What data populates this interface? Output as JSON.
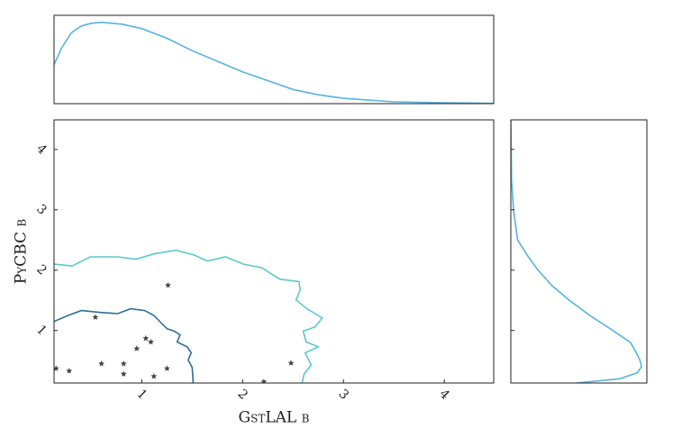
{
  "chart_data": [
    {
      "type": "line",
      "x": [
        0.13,
        0.2,
        0.3,
        0.4,
        0.5,
        0.6,
        0.8,
        1.0,
        1.25,
        1.5,
        1.75,
        2.0,
        2.25,
        2.5,
        2.75,
        3.0,
        3.5,
        4.0,
        4.49
      ],
      "series": [
        {
          "color": "#56b4e0",
          "values": [
            0.44,
            0.62,
            0.8,
            0.88,
            0.91,
            0.92,
            0.9,
            0.85,
            0.74,
            0.6,
            0.48,
            0.36,
            0.26,
            0.16,
            0.1,
            0.06,
            0.02,
            0.01,
            0.003
          ]
        }
      ],
      "xlim": [
        0.13,
        4.49
      ],
      "ylim": [
        0,
        1
      ]
    },
    {
      "type": "scatter",
      "xlabel": "GstLAL β",
      "ylabel": "PyCBC β",
      "xlim": [
        0.13,
        4.49
      ],
      "ylim": [
        0.13,
        4.49
      ],
      "xticks": [
        1,
        2,
        3,
        4
      ],
      "yticks": [
        1,
        2,
        3,
        4
      ],
      "x": [
        0.15,
        0.28,
        0.54,
        0.6,
        0.82,
        0.82,
        0.95,
        1.04,
        1.09,
        1.12,
        1.25,
        1.26,
        2.21,
        2.48
      ],
      "values": [
        0.37,
        0.33,
        1.22,
        0.45,
        0.45,
        0.28,
        0.7,
        0.87,
        0.81,
        0.24,
        0.37,
        1.75,
        0.15,
        0.46
      ],
      "color": "#444444",
      "contours": [
        {
          "color": "#2c6f94",
          "x": [
            0.13,
            0.27,
            0.4,
            0.58,
            0.76,
            0.89,
            1.03,
            1.12,
            1.19,
            1.25,
            1.32,
            1.38,
            1.35,
            1.45,
            1.49,
            1.46,
            1.5,
            1.51
          ],
          "values": [
            1.15,
            1.25,
            1.33,
            1.3,
            1.28,
            1.36,
            1.33,
            1.25,
            1.13,
            1.03,
            0.99,
            0.93,
            0.81,
            0.73,
            0.63,
            0.51,
            0.39,
            0.13
          ]
        },
        {
          "color": "#5cc9cc",
          "x": [
            0.13,
            0.31,
            0.49,
            0.76,
            0.94,
            1.12,
            1.34,
            1.52,
            1.65,
            1.83,
            2.01,
            2.19,
            2.37,
            2.56,
            2.57,
            2.53,
            2.63,
            2.79,
            2.72,
            2.6,
            2.63,
            2.75,
            2.62,
            2.68,
            2.61,
            2.59
          ],
          "values": [
            2.1,
            2.07,
            2.22,
            2.22,
            2.18,
            2.27,
            2.33,
            2.25,
            2.15,
            2.22,
            2.1,
            2.04,
            1.85,
            1.81,
            1.67,
            1.51,
            1.37,
            1.21,
            1.06,
            0.99,
            0.81,
            0.73,
            0.63,
            0.43,
            0.28,
            0.13
          ]
        }
      ]
    },
    {
      "type": "line",
      "orientation": "horizontal",
      "y": [
        0.13,
        0.2,
        0.3,
        0.4,
        0.5,
        0.6,
        0.8,
        1.0,
        1.25,
        1.5,
        1.75,
        2.0,
        2.25,
        2.5,
        3.0,
        3.5,
        4.49
      ],
      "series": [
        {
          "color": "#56b4e0",
          "values": [
            0.48,
            0.8,
            0.93,
            0.96,
            0.95,
            0.93,
            0.88,
            0.75,
            0.58,
            0.43,
            0.3,
            0.2,
            0.12,
            0.05,
            0.02,
            0.005,
            0
          ]
        }
      ],
      "xlim": [
        0,
        1
      ],
      "ylim": [
        0.13,
        4.49
      ],
      "yticks": [
        1,
        2,
        3,
        4
      ]
    }
  ]
}
